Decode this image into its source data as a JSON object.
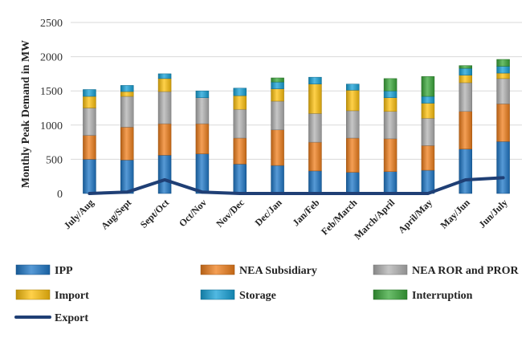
{
  "chart_data": {
    "type": "bar",
    "stacked": true,
    "ylabel": "Monthly Peak Demand in MW",
    "xlabel": "",
    "ylim": [
      0,
      2500
    ],
    "yticks": [
      0,
      500,
      1000,
      1500,
      2000,
      2500
    ],
    "grid": "horizontal",
    "legend_position": "bottom",
    "categories": [
      "July/Aug",
      "Aug/Sept",
      "Sept/Oct",
      "Oct/Nov",
      "Nov/Dec",
      "Dec/Jan",
      "Jan/Feb",
      "Feb/March",
      "March/April",
      "April/May",
      "May/Jun",
      "Jun/July"
    ],
    "series": [
      {
        "name": "IPP",
        "kind": "bar",
        "color": "#1f78c8",
        "values": [
          500,
          490,
          560,
          580,
          430,
          410,
          330,
          310,
          320,
          340,
          650,
          760
        ]
      },
      {
        "name": "NEA Subsidiary",
        "kind": "bar",
        "color": "#f07f1c",
        "values": [
          350,
          480,
          460,
          440,
          380,
          520,
          420,
          500,
          480,
          360,
          550,
          550
        ]
      },
      {
        "name": "NEA ROR and PROR",
        "kind": "bar",
        "color": "#b3b3b3",
        "values": [
          400,
          450,
          470,
          380,
          420,
          420,
          420,
          400,
          400,
          400,
          420,
          370
        ]
      },
      {
        "name": "Import",
        "kind": "bar",
        "color": "#ffc20e",
        "values": [
          170,
          70,
          190,
          0,
          200,
          180,
          430,
          300,
          200,
          220,
          110,
          80
        ]
      },
      {
        "name": "Storage",
        "kind": "bar",
        "color": "#17a2d8",
        "values": [
          100,
          90,
          70,
          100,
          110,
          100,
          100,
          90,
          100,
          100,
          100,
          100
        ]
      },
      {
        "name": "Interruption",
        "kind": "bar",
        "color": "#3aa83a",
        "values": [
          0,
          0,
          0,
          0,
          0,
          60,
          0,
          0,
          180,
          290,
          40,
          100
        ]
      },
      {
        "name": "Export",
        "kind": "line",
        "color": "#1f3f75",
        "values": [
          0,
          20,
          200,
          20,
          0,
          0,
          0,
          0,
          0,
          0,
          200,
          230
        ]
      }
    ]
  }
}
